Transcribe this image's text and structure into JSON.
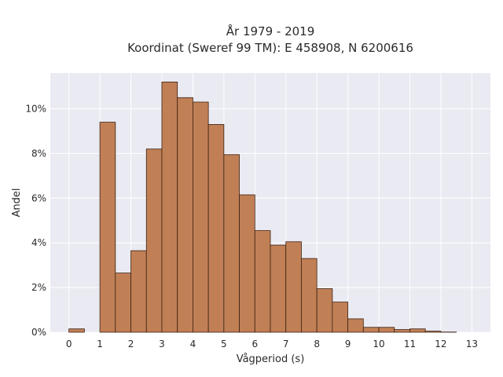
{
  "chart_data": {
    "type": "bar",
    "title_line1": "År 1979 - 2019",
    "title_line2": "Koordinat (Sweref 99 TM): E 458908, N 6200616",
    "xlabel": "Vågperiod (s)",
    "ylabel": "Andel",
    "bin_width": 0.5,
    "bin_starts": [
      0,
      0.5,
      1,
      1.5,
      2,
      2.5,
      3,
      3.5,
      4,
      4.5,
      5,
      5.5,
      6,
      6.5,
      7,
      7.5,
      8,
      8.5,
      9,
      9.5,
      10,
      10.5,
      11,
      11.5,
      12,
      12.5,
      13
    ],
    "values": [
      0.15,
      0,
      9.4,
      2.65,
      3.65,
      8.2,
      11.2,
      10.5,
      10.3,
      9.3,
      7.95,
      6.15,
      4.55,
      3.9,
      4.05,
      3.3,
      1.95,
      1.35,
      0.6,
      0.22,
      0.22,
      0.12,
      0.15,
      0.05,
      0.01,
      0,
      0
    ],
    "xlim": [
      -0.6,
      13.6
    ],
    "ylim": [
      0,
      11.6
    ],
    "x_ticks": [
      "0",
      "1",
      "2",
      "3",
      "4",
      "5",
      "6",
      "7",
      "8",
      "9",
      "10",
      "11",
      "12",
      "13"
    ],
    "y_ticks": [
      "0%",
      "2%",
      "4%",
      "6%",
      "8%",
      "10%"
    ],
    "grid": true,
    "colors": {
      "bar_fill": "#c17f56",
      "bar_edge": "#3b2212",
      "plot_bg": "#eaeaf2",
      "grid": "#ffffff"
    }
  }
}
